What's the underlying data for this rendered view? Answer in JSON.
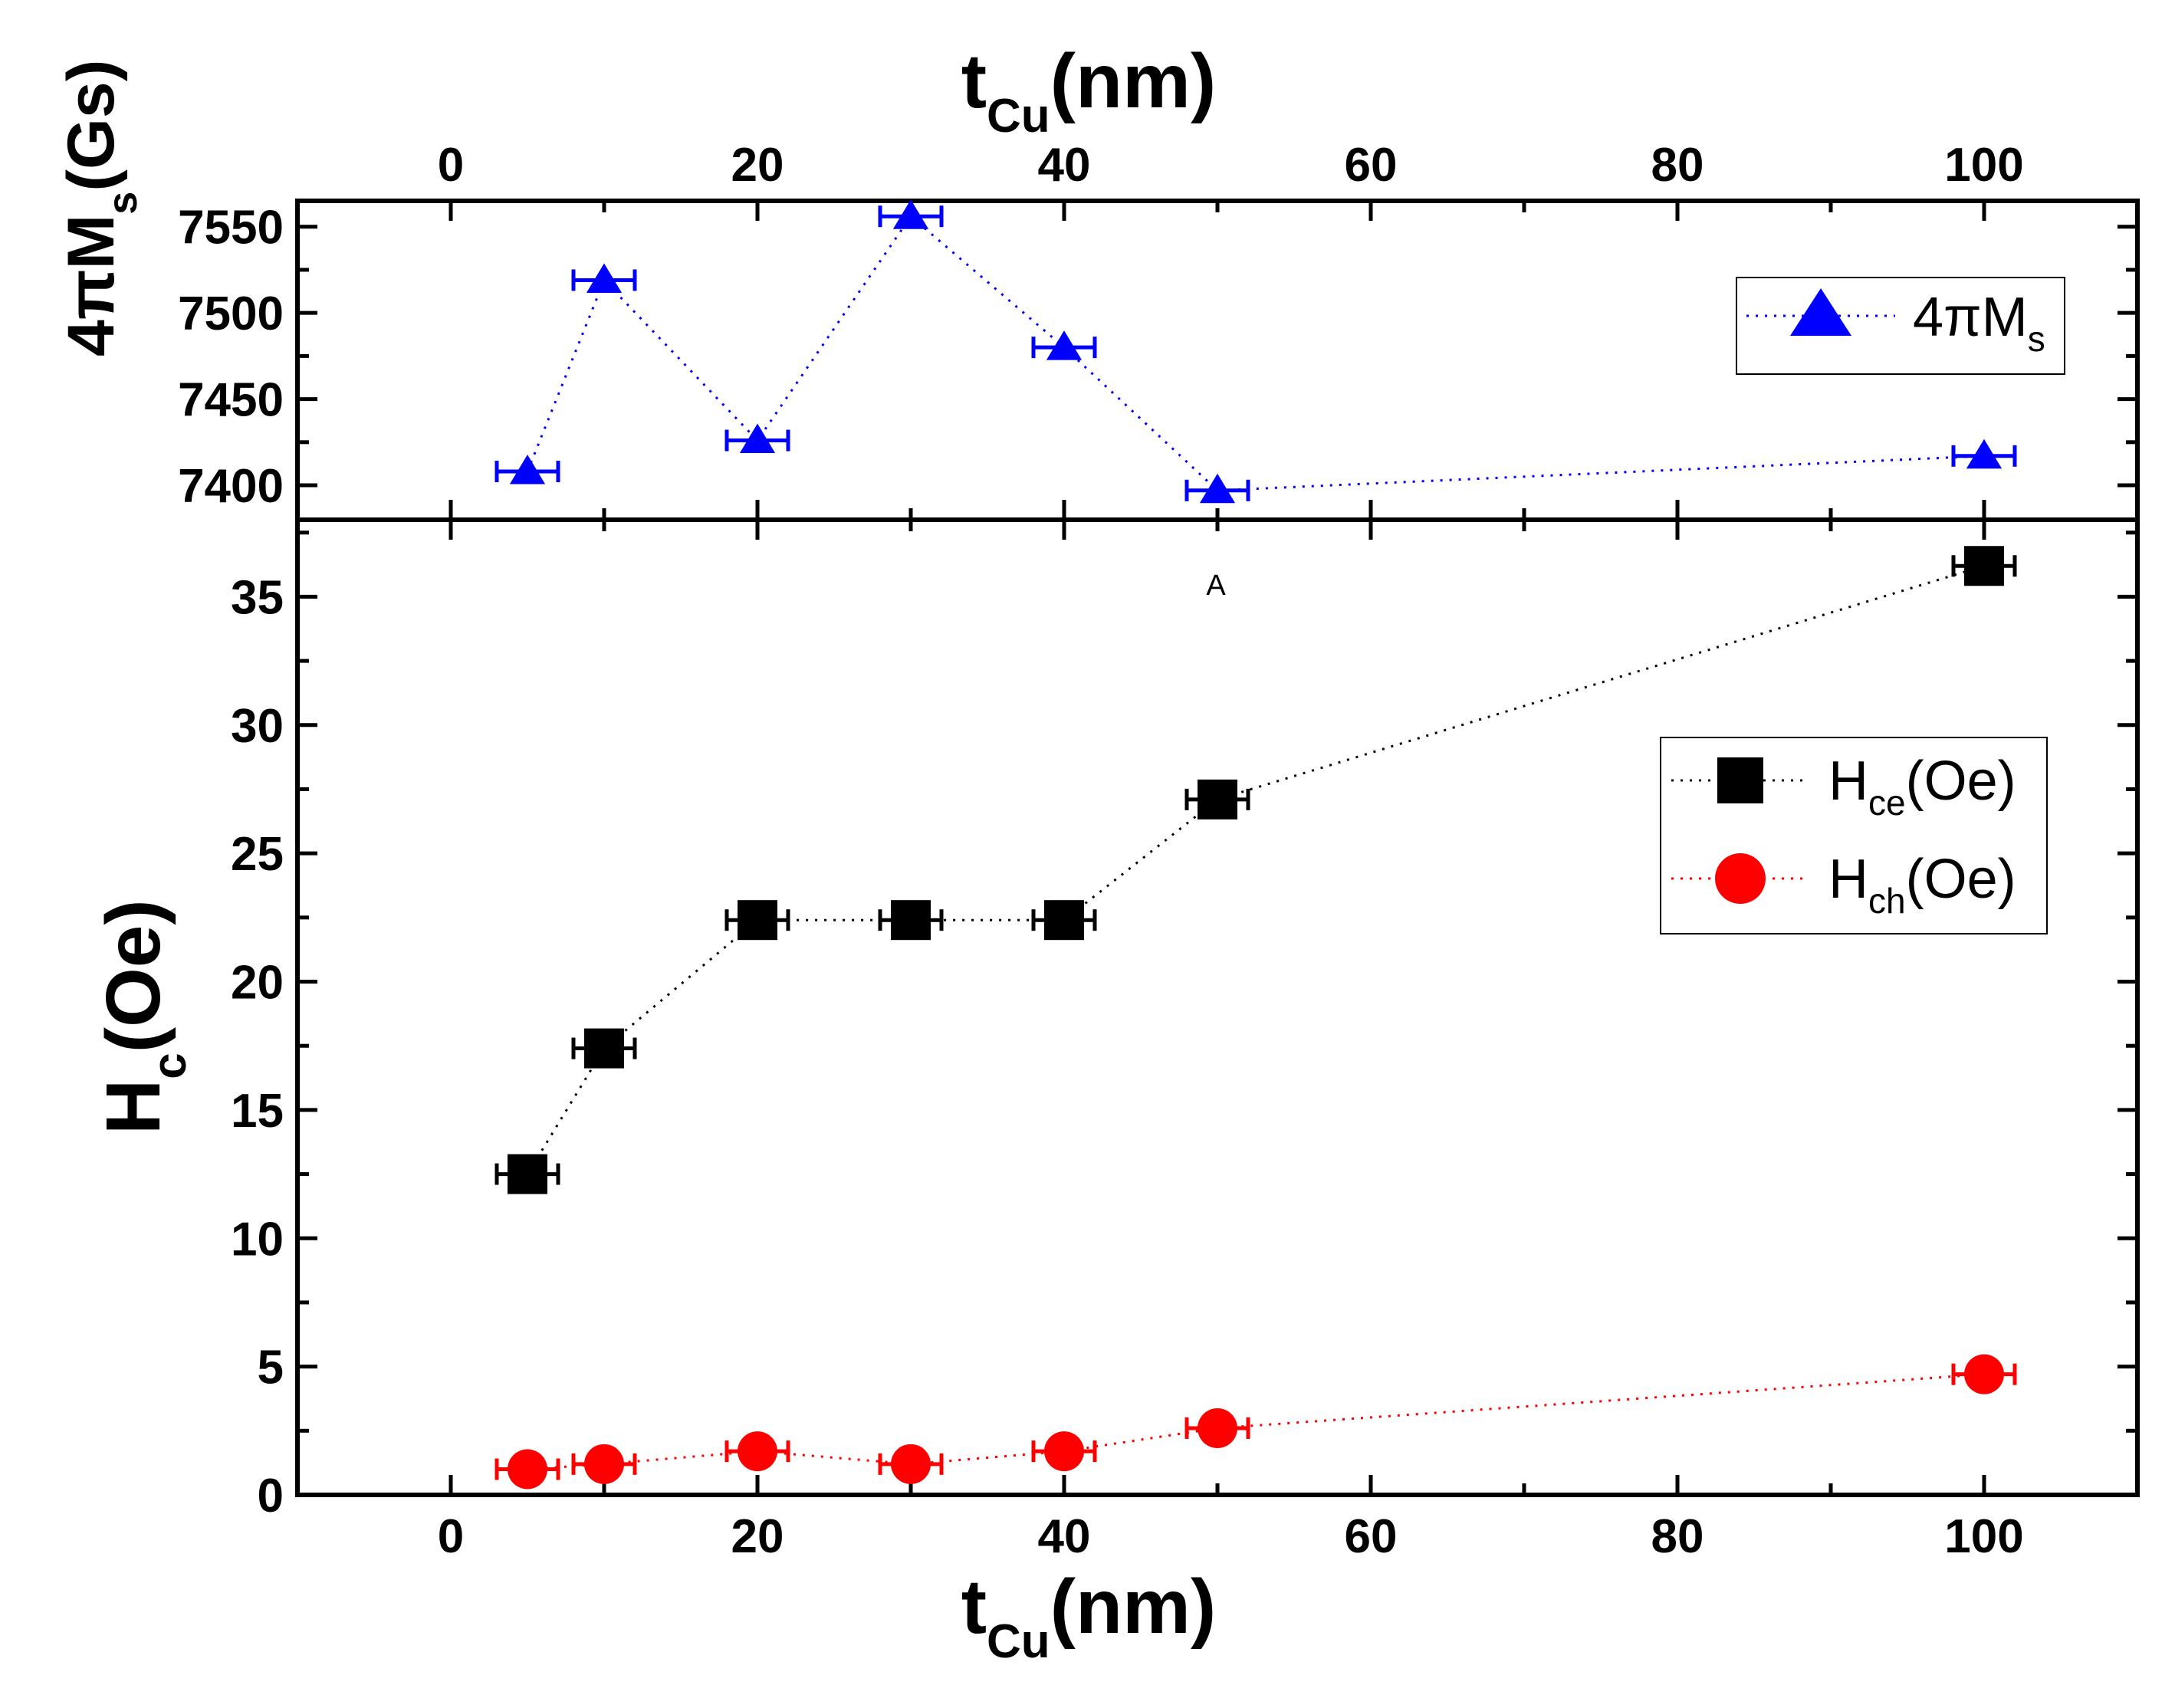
{
  "chart_data": [
    {
      "id": "top",
      "type": "scatter",
      "xlabel": {
        "main": "t",
        "sub": "Cu",
        "rest": "(nm)"
      },
      "ylabel": {
        "main": "4πM",
        "sub": "s",
        "rest": "(Gs)"
      },
      "xlim": [
        -10,
        110
      ],
      "ylim": [
        7380,
        7565
      ],
      "xticks": [
        0,
        20,
        40,
        60,
        80,
        100
      ],
      "yticks": [
        7400,
        7450,
        7500,
        7550
      ],
      "series": [
        {
          "name": "4πMs",
          "legend": {
            "main": "4πM",
            "sub": "s"
          },
          "color": "#0000ff",
          "marker": "triangle",
          "x": [
            5,
            10,
            20,
            30,
            40,
            50,
            100
          ],
          "y": [
            7408,
            7519,
            7426,
            7556,
            7480,
            7397,
            7417
          ],
          "xerr": 2
        }
      ]
    },
    {
      "id": "bottom",
      "type": "scatter",
      "xlabel": {
        "main": "t",
        "sub": "Cu",
        "rest": "(nm)"
      },
      "ylabel": {
        "main": "H",
        "sub": "c",
        "rest": "(Oe)"
      },
      "xlim": [
        -10,
        110
      ],
      "ylim": [
        0,
        38
      ],
      "xticks": [
        0,
        20,
        40,
        60,
        80,
        100
      ],
      "yticks": [
        0,
        5,
        10,
        15,
        20,
        25,
        30,
        35
      ],
      "annotation": "A",
      "series": [
        {
          "name": "Hce(Oe)",
          "legend": {
            "main": "H",
            "sub": "ce",
            "rest": "(Oe)"
          },
          "color": "#000000",
          "marker": "square",
          "x": [
            5,
            10,
            20,
            30,
            40,
            50,
            100
          ],
          "y": [
            12.5,
            17.4,
            22.4,
            22.4,
            22.4,
            27.1,
            36.2
          ],
          "xerr": 2
        },
        {
          "name": "Hch(Oe)",
          "legend": {
            "main": "H",
            "sub": "ch",
            "rest": "(Oe)"
          },
          "color": "#ff0000",
          "marker": "circle",
          "x": [
            5,
            10,
            20,
            30,
            40,
            50,
            100
          ],
          "y": [
            1.0,
            1.2,
            1.7,
            1.2,
            1.7,
            2.6,
            4.7
          ],
          "xerr": 2
        }
      ]
    }
  ]
}
